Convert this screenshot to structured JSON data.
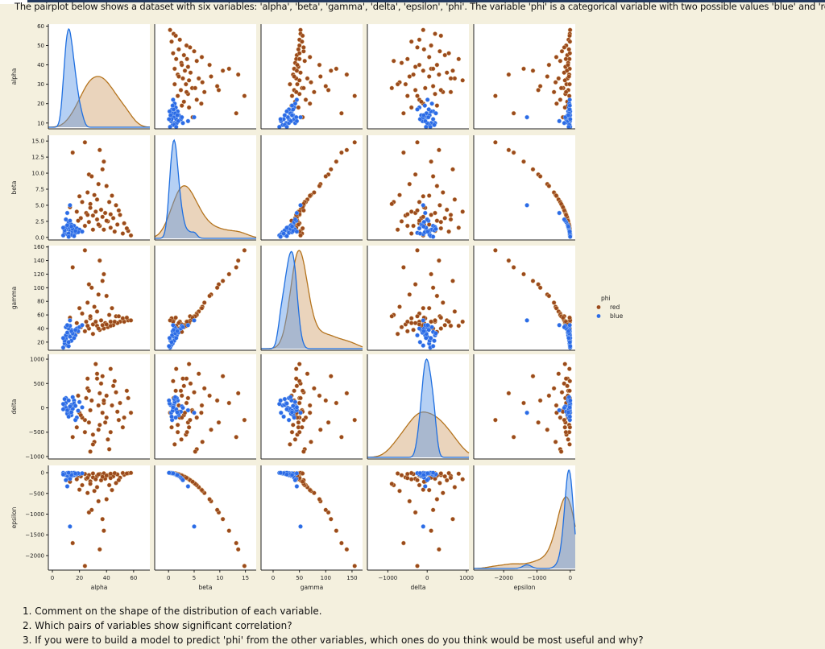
{
  "intro": "The pairplot below shows a dataset with six variables: 'alpha', 'beta', 'gamma', 'delta', 'epsilon', 'phi'. The variable 'phi' is a categorical variable with two possible values 'blue' and 'red'.",
  "questions": [
    "1. Comment on the shape of the distribution of each variable.",
    "2. Which pairs of variables show significant correlation?",
    "3. If you were to build a model to predict 'phi' from the other variables, which ones do you think would be most useful and why?"
  ],
  "chart_data": {
    "type": "scatter",
    "subtype": "pairplot",
    "diagonal": "kde",
    "hue": "phi",
    "legend": {
      "title": "phi",
      "entries": [
        "red",
        "blue"
      ],
      "placement": "right"
    },
    "colors": {
      "red": "#9a4a1c",
      "blue": "#2b6be6",
      "red_kde": "#b5741e",
      "blue_kde": "#1f6fe0"
    },
    "grid": false,
    "variables": [
      {
        "name": "alpha",
        "xlim": [
          -3,
          72
        ],
        "ylim": [
          7,
          61
        ],
        "xticks": [
          0,
          20,
          40,
          60
        ],
        "yticks": [
          10,
          20,
          30,
          40,
          50,
          60
        ],
        "ytick_labels": [
          "10",
          "20",
          "30",
          "40",
          "50",
          "60"
        ]
      },
      {
        "name": "beta",
        "xlim": [
          -2.7,
          17.1
        ],
        "ylim": [
          -0.4,
          15.9
        ],
        "xticks": [
          0,
          5,
          10,
          15
        ],
        "yticks": [
          0,
          2.5,
          5,
          7.5,
          10,
          12.5,
          15
        ],
        "ytick_labels": [
          "0.0",
          "2.5",
          "5.0",
          "7.5",
          "10.0",
          "12.5",
          "15.0"
        ]
      },
      {
        "name": "gamma",
        "xlim": [
          -23,
          170
        ],
        "ylim": [
          8,
          162
        ],
        "xticks": [
          0,
          50,
          100,
          150
        ],
        "yticks": [
          20,
          40,
          60,
          80,
          100,
          120,
          140,
          160
        ],
        "ytick_labels": [
          "20",
          "40",
          "60",
          "80",
          "100",
          "120",
          "140",
          "160"
        ]
      },
      {
        "name": "delta",
        "xlim": [
          -1520,
          1060
        ],
        "ylim": [
          -1050,
          1100
        ],
        "xticks": [
          -1000,
          0,
          1000
        ],
        "yticks": [
          -1000,
          -500,
          0,
          500,
          1000
        ],
        "ytick_labels": [
          "−1000",
          "−500",
          "0",
          "500",
          "1000"
        ]
      },
      {
        "name": "epsilon",
        "xlim": [
          -2900,
          150
        ],
        "ylim": [
          -2350,
          175
        ],
        "xticks": [
          -2000,
          -1000,
          0
        ],
        "yticks": [
          -2000,
          -1500,
          -1000,
          -500,
          0
        ],
        "ytick_labels": [
          "−2000",
          "−1500",
          "−1000",
          "−500",
          "0"
        ]
      }
    ],
    "xtick_labels": {
      "alpha": [
        "0",
        "20",
        "40",
        "60"
      ],
      "beta": [
        "0",
        "5",
        "10",
        "15"
      ],
      "gamma": [
        "0",
        "50",
        "100",
        "150"
      ],
      "delta": [
        "−1000",
        "0",
        "1000"
      ],
      "epsilon": [
        "−2000",
        "−1000",
        "0"
      ]
    },
    "record_fields": [
      "alpha",
      "beta",
      "gamma",
      "delta",
      "epsilon"
    ],
    "series": [
      {
        "name": "red",
        "records": [
          [
            24,
            14.8,
            155,
            -250,
            -2250
          ],
          [
            35,
            13.6,
            140,
            300,
            -1850
          ],
          [
            15,
            13.2,
            130,
            -600,
            -1700
          ],
          [
            38,
            11.8,
            120,
            100,
            -1400
          ],
          [
            37,
            10.6,
            110,
            650,
            -1120
          ],
          [
            27,
            9.8,
            105,
            -300,
            -960
          ],
          [
            29,
            9.5,
            100,
            150,
            -900
          ],
          [
            34,
            8.3,
            90,
            -450,
            -690
          ],
          [
            40,
            8.0,
            88,
            250,
            -640
          ],
          [
            20,
            6.4,
            70,
            -100,
            -410
          ],
          [
            26,
            7.0,
            78,
            400,
            -490
          ],
          [
            31,
            6.6,
            72,
            -700,
            -440
          ],
          [
            44,
            6.5,
            70,
            50,
            -420
          ],
          [
            33,
            5.9,
            65,
            700,
            -350
          ],
          [
            22,
            5.5,
            62,
            -200,
            -300
          ],
          [
            42,
            5.5,
            60,
            -850,
            -300
          ],
          [
            47,
            5.0,
            58,
            320,
            -250
          ],
          [
            28,
            4.6,
            55,
            -50,
            -210
          ],
          [
            36,
            4.3,
            52,
            500,
            -185
          ],
          [
            18,
            4.0,
            48,
            -400,
            -160
          ],
          [
            25,
            3.8,
            50,
            200,
            -145
          ],
          [
            39,
            3.8,
            48,
            -300,
            -145
          ],
          [
            50,
            3.5,
            50,
            100,
            -120
          ],
          [
            30,
            3.4,
            46,
            -550,
            -115
          ],
          [
            45,
            3.0,
            45,
            450,
            -90
          ],
          [
            21,
            3.0,
            42,
            -150,
            -90
          ],
          [
            33,
            2.8,
            44,
            600,
            -80
          ],
          [
            53,
            2.2,
            50,
            -200,
            -50
          ],
          [
            41,
            2.5,
            42,
            -650,
            -62
          ],
          [
            27,
            2.4,
            40,
            350,
            -58
          ],
          [
            48,
            2.0,
            48,
            -80,
            -40
          ],
          [
            56,
            1.0,
            52,
            200,
            -15
          ],
          [
            35,
            1.8,
            38,
            -350,
            -32
          ],
          [
            43,
            1.5,
            44,
            800,
            -25
          ],
          [
            24,
            1.8,
            36,
            -500,
            -30
          ],
          [
            38,
            1.2,
            40,
            150,
            -18
          ],
          [
            52,
            0.6,
            55,
            -400,
            -10
          ],
          [
            46,
            0.9,
            50,
            550,
            -12
          ],
          [
            30,
            1.2,
            32,
            -750,
            -20
          ],
          [
            58,
            0.3,
            52,
            -100,
            -5
          ],
          [
            19,
            2.6,
            35,
            250,
            -70
          ],
          [
            28,
            5.2,
            58,
            -900,
            -270
          ],
          [
            32,
            4.0,
            50,
            900,
            -160
          ],
          [
            49,
            4.2,
            58,
            -250,
            -180
          ],
          [
            37,
            3.2,
            45,
            -100,
            -100
          ],
          [
            55,
            1.4,
            56,
            350,
            -20
          ],
          [
            43,
            3.6,
            50,
            -500,
            -130
          ],
          [
            26,
            3.5,
            44,
            600,
            -125
          ],
          [
            34,
            2.0,
            40,
            50,
            -40
          ],
          [
            40,
            2.6,
            46,
            -200,
            -68
          ],
          [
            13,
            4.7,
            56,
            -80,
            -220
          ]
        ]
      },
      {
        "name": "blue",
        "records": [
          [
            12,
            1.5,
            30,
            -50,
            -50
          ],
          [
            10,
            1.2,
            25,
            100,
            -30
          ],
          [
            14,
            2.0,
            38,
            -150,
            -80
          ],
          [
            9,
            0.8,
            18,
            50,
            -20
          ],
          [
            16,
            1.8,
            35,
            150,
            -60
          ],
          [
            11,
            0.5,
            15,
            -100,
            -10
          ],
          [
            13,
            1.0,
            28,
            0,
            -25
          ],
          [
            18,
            1.4,
            40,
            -200,
            -40
          ],
          [
            8,
            0.3,
            12,
            80,
            -5
          ],
          [
            15,
            0.9,
            32,
            -20,
            -18
          ],
          [
            20,
            1.2,
            42,
            120,
            -30
          ],
          [
            12,
            2.4,
            40,
            -80,
            -120
          ],
          [
            10,
            1.6,
            30,
            200,
            -60
          ],
          [
            17,
            0.7,
            30,
            -250,
            -12
          ],
          [
            14,
            0.4,
            22,
            60,
            -8
          ],
          [
            11,
            1.9,
            34,
            -120,
            -70
          ],
          [
            9,
            1.1,
            22,
            180,
            -28
          ],
          [
            13,
            2.6,
            44,
            30,
            -150
          ],
          [
            19,
            0.8,
            36,
            -60,
            -15
          ],
          [
            16,
            0.2,
            26,
            90,
            -4
          ],
          [
            12,
            0.6,
            20,
            -180,
            -12
          ],
          [
            10,
            2.8,
            42,
            0,
            -180
          ],
          [
            15,
            1.3,
            33,
            220,
            -35
          ],
          [
            8,
            1.5,
            26,
            -30,
            -45
          ],
          [
            13,
            5.0,
            52,
            -100,
            -1300
          ],
          [
            11,
            3.8,
            45,
            -50,
            -330
          ],
          [
            17,
            1.0,
            38,
            40,
            -22
          ],
          [
            14,
            1.7,
            36,
            -90,
            -55
          ],
          [
            22,
            0.9,
            45,
            10,
            -16
          ],
          [
            12,
            0.1,
            14,
            150,
            -3
          ]
        ]
      }
    ]
  }
}
